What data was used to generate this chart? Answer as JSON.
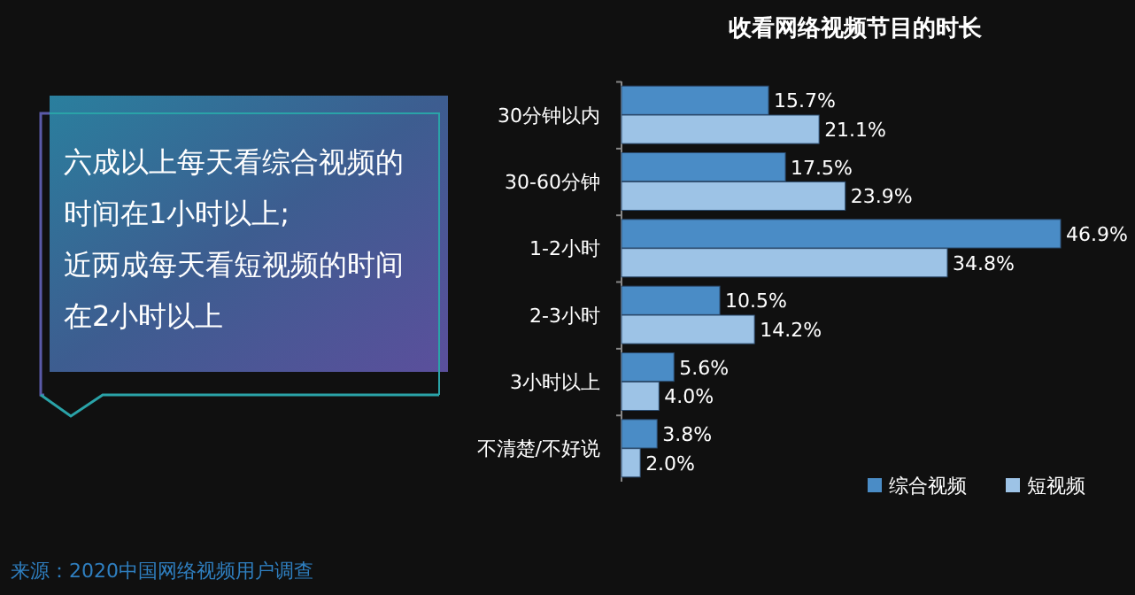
{
  "chart_data": {
    "type": "bar",
    "orientation": "horizontal",
    "title": "收看网络视频节目的时长",
    "categories": [
      "30分钟以内",
      "30-60分钟",
      "1-2小时",
      "2-3小时",
      "3小时以上",
      "不清楚/不好说"
    ],
    "series": [
      {
        "name": "综合视频",
        "color": "#4a8cc6",
        "values": [
          15.7,
          17.5,
          46.9,
          10.5,
          5.6,
          3.8
        ],
        "value_labels": [
          "15.7%",
          "17.5%",
          "46.9%",
          "10.5%",
          "5.6%",
          "3.8%"
        ]
      },
      {
        "name": "短视频",
        "color": "#9dc3e6",
        "values": [
          21.1,
          23.9,
          34.8,
          14.2,
          4.0,
          2.0
        ],
        "value_labels": [
          "21.1%",
          "23.9%",
          "34.8%",
          "14.2%",
          "4.0%",
          "2.0%"
        ]
      }
    ],
    "legend": "bottom right",
    "annotations": [
      "六成以上每天看综合视频的时间在1小时以上;近两成每天看短视频的时间在2小时以上",
      "来源：2020中国网络视频用户调查"
    ]
  }
}
